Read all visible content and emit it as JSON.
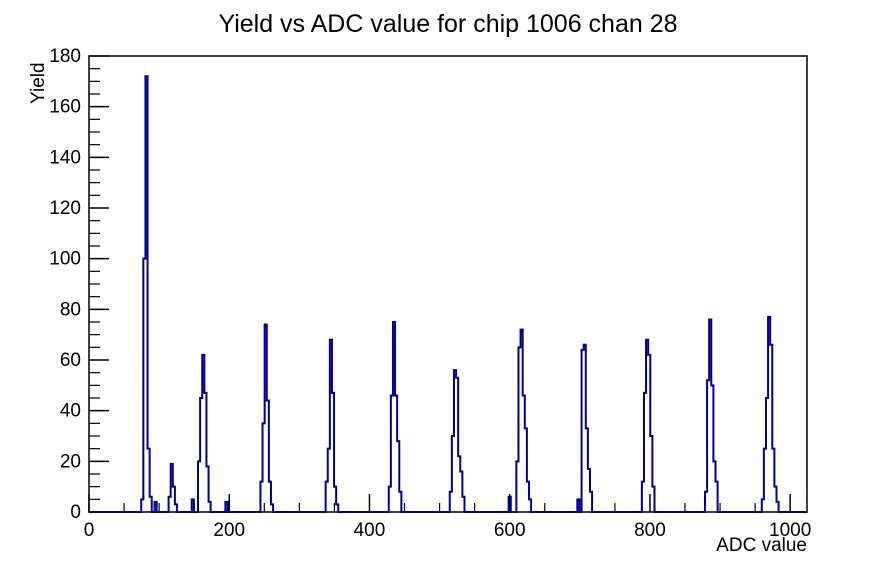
{
  "chart_data": {
    "type": "bar",
    "title": "Yield vs ADC value for chip 1006 chan 28",
    "xlabel": "ADC value",
    "ylabel": "Yield",
    "xlim": [
      0,
      1024
    ],
    "ylim": [
      0,
      180
    ],
    "x_major_ticks": [
      0,
      200,
      400,
      600,
      800,
      1000
    ],
    "x_minor_step": 50,
    "y_major_ticks": [
      0,
      20,
      40,
      60,
      80,
      100,
      120,
      140,
      160,
      180
    ],
    "y_minor_step": 5,
    "grid": false,
    "legend": false,
    "line_color": "#00008b",
    "frame_color": "#000000",
    "background_color": "#ffffff",
    "bin_width": 3,
    "bins": [
      [
        76,
        5
      ],
      [
        79,
        100
      ],
      [
        82,
        172
      ],
      [
        85,
        25
      ],
      [
        88,
        6
      ],
      [
        95,
        4
      ],
      [
        115,
        6
      ],
      [
        118,
        19
      ],
      [
        121,
        10
      ],
      [
        124,
        3
      ],
      [
        148,
        5
      ],
      [
        157,
        20
      ],
      [
        160,
        45
      ],
      [
        163,
        62
      ],
      [
        166,
        47
      ],
      [
        169,
        18
      ],
      [
        172,
        4
      ],
      [
        196,
        4
      ],
      [
        246,
        12
      ],
      [
        249,
        35
      ],
      [
        252,
        74
      ],
      [
        255,
        44
      ],
      [
        258,
        12
      ],
      [
        261,
        3
      ],
      [
        339,
        12
      ],
      [
        342,
        25
      ],
      [
        345,
        68
      ],
      [
        348,
        47
      ],
      [
        351,
        10
      ],
      [
        354,
        3
      ],
      [
        429,
        10
      ],
      [
        432,
        46
      ],
      [
        435,
        75
      ],
      [
        438,
        46
      ],
      [
        441,
        28
      ],
      [
        444,
        8
      ],
      [
        516,
        8
      ],
      [
        519,
        30
      ],
      [
        522,
        56
      ],
      [
        525,
        53
      ],
      [
        528,
        22
      ],
      [
        531,
        16
      ],
      [
        534,
        6
      ],
      [
        600,
        6
      ],
      [
        611,
        20
      ],
      [
        614,
        65
      ],
      [
        617,
        72
      ],
      [
        620,
        46
      ],
      [
        623,
        33
      ],
      [
        626,
        12
      ],
      [
        629,
        5
      ],
      [
        698,
        5
      ],
      [
        704,
        64
      ],
      [
        707,
        66
      ],
      [
        710,
        33
      ],
      [
        713,
        17
      ],
      [
        716,
        8
      ],
      [
        790,
        12
      ],
      [
        793,
        47
      ],
      [
        796,
        68
      ],
      [
        799,
        62
      ],
      [
        802,
        30
      ],
      [
        805,
        10
      ],
      [
        880,
        8
      ],
      [
        883,
        52
      ],
      [
        886,
        76
      ],
      [
        889,
        50
      ],
      [
        892,
        20
      ],
      [
        895,
        12
      ],
      [
        961,
        5
      ],
      [
        964,
        25
      ],
      [
        967,
        45
      ],
      [
        970,
        77
      ],
      [
        973,
        66
      ],
      [
        976,
        25
      ],
      [
        979,
        10
      ],
      [
        982,
        4
      ]
    ]
  }
}
